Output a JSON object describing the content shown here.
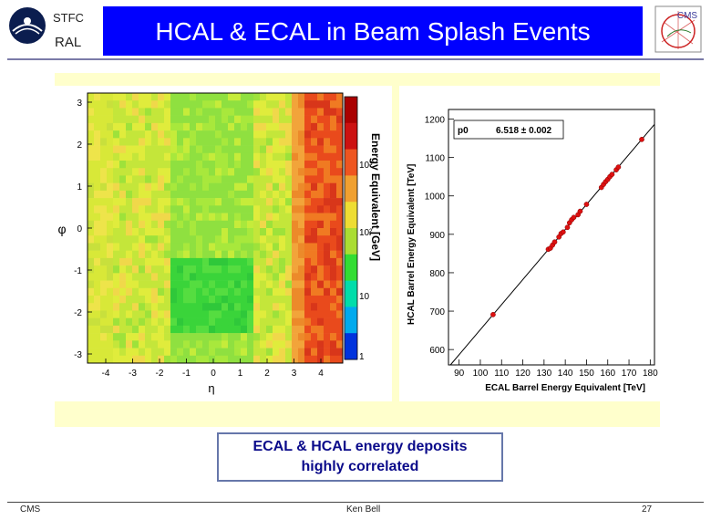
{
  "header": {
    "org_top": "STFC",
    "org_bottom": "RAL",
    "title": "HCAL & ECAL in Beam Splash Events",
    "logo_right_text": "CMS"
  },
  "heatmap": {
    "y_title": "φ",
    "x_title": "η",
    "x_ticks": [
      "-4",
      "-3",
      "-2",
      "-1",
      "0",
      "1",
      "2",
      "3",
      "4"
    ],
    "y_ticks": [
      "3",
      "2",
      "1",
      "0",
      "-1",
      "-2",
      "-3"
    ],
    "colorbar_title": "Energy Equivalent [GeV]",
    "colorbar_ticks": [
      "1",
      "10",
      "10²",
      "10³"
    ]
  },
  "chart_data": {
    "type": "scatter",
    "xlabel": "ECAL Barrel Energy Equivalent [TeV]",
    "ylabel": "HCAL Barrel Energy Equivalent [TeV]",
    "xlim": [
      85,
      182
    ],
    "ylim": [
      560,
      1225
    ],
    "x_ticks": [
      "90",
      "100",
      "110",
      "120",
      "130",
      "140",
      "150",
      "160",
      "170",
      "180"
    ],
    "y_ticks": [
      "600",
      "700",
      "800",
      "900",
      "1000",
      "1100",
      "1200"
    ],
    "fit_label": "p0",
    "fit_value": "6.518 ± 0.002",
    "fit_slope": 6.518,
    "points": [
      {
        "x": 106,
        "y": 691
      },
      {
        "x": 132,
        "y": 861
      },
      {
        "x": 133,
        "y": 864
      },
      {
        "x": 134,
        "y": 872
      },
      {
        "x": 135,
        "y": 880
      },
      {
        "x": 137,
        "y": 893
      },
      {
        "x": 138,
        "y": 902
      },
      {
        "x": 139,
        "y": 906
      },
      {
        "x": 141,
        "y": 918
      },
      {
        "x": 142,
        "y": 930
      },
      {
        "x": 143,
        "y": 938
      },
      {
        "x": 144,
        "y": 944
      },
      {
        "x": 146,
        "y": 951
      },
      {
        "x": 147,
        "y": 960
      },
      {
        "x": 150,
        "y": 978
      },
      {
        "x": 157,
        "y": 1022
      },
      {
        "x": 158,
        "y": 1030
      },
      {
        "x": 159,
        "y": 1037
      },
      {
        "x": 160,
        "y": 1043
      },
      {
        "x": 161,
        "y": 1050
      },
      {
        "x": 162,
        "y": 1056
      },
      {
        "x": 164,
        "y": 1068
      },
      {
        "x": 165,
        "y": 1075
      },
      {
        "x": 176,
        "y": 1147
      }
    ]
  },
  "caption": {
    "line1": "ECAL & HCAL energy deposits",
    "line2": "highly correlated"
  },
  "footer": {
    "left": "CMS",
    "center": "Ken Bell",
    "right": "27"
  }
}
